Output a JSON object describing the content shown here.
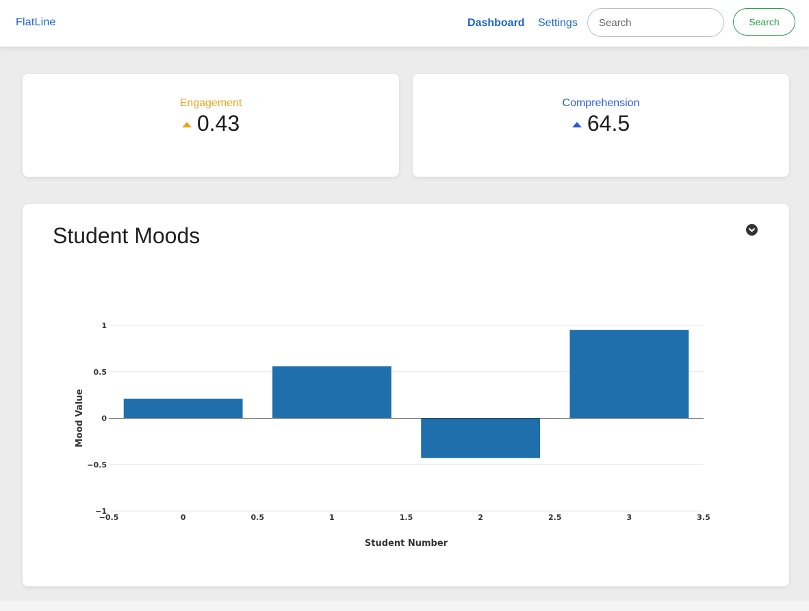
{
  "nav": {
    "brand": "FlatLine",
    "links": [
      {
        "label": "Dashboard",
        "active": true
      },
      {
        "label": "Settings",
        "active": false
      }
    ],
    "search_placeholder": "Search",
    "search_button": "Search"
  },
  "metrics": [
    {
      "label": "Engagement",
      "value": "0.43",
      "trend_icon": "triangle-up-icon",
      "color": "#f0a21b"
    },
    {
      "label": "Comprehension",
      "value": "64.5",
      "trend_icon": "triangle-up-icon",
      "color": "#2a5bd7"
    }
  ],
  "chart_card": {
    "title": "Student Moods",
    "menu_icon": "chevron-down-circle-icon"
  },
  "chart_data": {
    "type": "bar",
    "x": [
      0,
      1,
      2,
      3
    ],
    "values": [
      0.21,
      0.56,
      -0.43,
      0.95
    ],
    "xlabel": "Student Number",
    "ylabel": "Mood Value",
    "xlim": [
      -0.5,
      3.5
    ],
    "ylim": [
      -1,
      1
    ],
    "xticks": [
      "−0.5",
      "0",
      "0.5",
      "1",
      "1.5",
      "2",
      "2.5",
      "3",
      "3.5"
    ],
    "yticks": [
      "−1",
      "−0.5",
      "0",
      "0.5",
      "1"
    ],
    "bar_color": "#1f6fad",
    "grid": true
  }
}
